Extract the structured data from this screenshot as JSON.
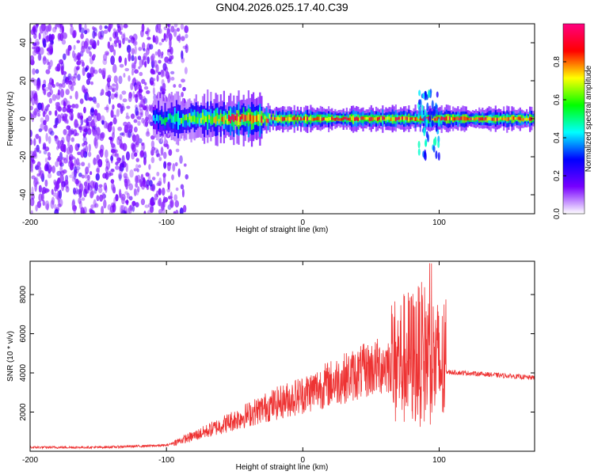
{
  "figure": {
    "title": "GN04.2026.025.17.40.C39"
  },
  "chart_data": [
    {
      "type": "heatmap",
      "name": "spectrogram",
      "xlabel": "Height of straight line (km)",
      "ylabel": "Frequency (Hz)",
      "xlim": [
        -200,
        170
      ],
      "ylim": [
        -50,
        50
      ],
      "xticks": [
        -200,
        -100,
        0,
        100
      ],
      "yticks": [
        -40,
        -20,
        0,
        20,
        40
      ],
      "colorbar": {
        "label": "Normalized spectral amplitude",
        "range": [
          0,
          1
        ],
        "ticks": [
          0.0,
          0.2,
          0.4,
          0.6,
          0.8
        ],
        "tick_labels": [
          "0.0",
          "0.2",
          "0.4",
          "0.6",
          "0.8"
        ],
        "colormap": [
          "#ffffff",
          "#7700ff",
          "#0000ff",
          "#00ffff",
          "#00ff00",
          "#ffff00",
          "#ff0000",
          "#ff0080"
        ]
      },
      "regions": [
        {
          "description": "broadband noise",
          "x_range": [
            -200,
            -85
          ],
          "y_range": [
            -50,
            50
          ],
          "amplitude": 0.1
        },
        {
          "description": "narrow line near 0 Hz",
          "x_range": [
            -110,
            170
          ],
          "y_center": 0,
          "amplitude": 0.9
        },
        {
          "description": "spike",
          "x_range": [
            85,
            100
          ],
          "y_range": [
            -20,
            15
          ],
          "amplitude": 0.4
        }
      ]
    },
    {
      "type": "line",
      "name": "snr",
      "color": "#ee3333",
      "xlabel": "Height of straight line (km)",
      "ylabel": "SNR (10 * v/v)",
      "xlim": [
        -200,
        170
      ],
      "ylim": [
        0,
        9700
      ],
      "xticks": [
        -200,
        -100,
        0,
        100
      ],
      "yticks": [
        2000,
        4000,
        6000,
        8000
      ],
      "envelope": [
        {
          "x": -200,
          "y": 200
        },
        {
          "x": -150,
          "y": 200
        },
        {
          "x": -100,
          "y": 300
        },
        {
          "x": -75,
          "y": 900
        },
        {
          "x": -50,
          "y": 1600
        },
        {
          "x": -25,
          "y": 2300
        },
        {
          "x": 0,
          "y": 2900
        },
        {
          "x": 25,
          "y": 3600
        },
        {
          "x": 50,
          "y": 4200
        },
        {
          "x": 75,
          "y": 4700
        },
        {
          "x": 90,
          "y": 5000
        },
        {
          "x": 105,
          "y": 4050
        },
        {
          "x": 130,
          "y": 3950
        },
        {
          "x": 170,
          "y": 3750
        }
      ],
      "peak": {
        "x": 93,
        "y": 9600
      }
    }
  ]
}
